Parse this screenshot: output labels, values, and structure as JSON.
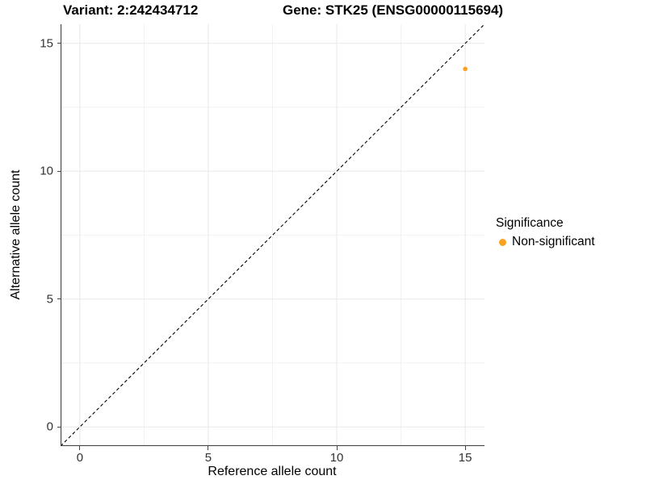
{
  "titles": {
    "variant": "Variant: 2:242434712",
    "gene": "Gene: STK25 (ENSG00000115694)"
  },
  "axes": {
    "x": {
      "label": "Reference allele count",
      "tick_labels": [
        "0",
        "5",
        "10",
        "15"
      ]
    },
    "y": {
      "label": "Alternative allele count",
      "tick_labels": [
        "0",
        "5",
        "10",
        "15"
      ]
    }
  },
  "legend": {
    "title": "Significance",
    "items": [
      {
        "label": "Non-significant",
        "color": "#FAA222"
      }
    ]
  },
  "colors": {
    "point_non_significant": "#FAA222",
    "grid_major": "#E8E8E8",
    "grid_minor": "#F2F2F2",
    "axis_line": "#444444",
    "reference_line": "#000000",
    "tick_text": "#333333"
  },
  "chart_data": {
    "type": "scatter",
    "title": "Variant: 2:242434712   Gene: STK25 (ENSG00000115694)",
    "xlabel": "Reference allele count",
    "ylabel": "Alternative allele count",
    "xlim": [
      -0.75,
      15.75
    ],
    "ylim": [
      -0.75,
      15.75
    ],
    "x_ticks": [
      0,
      5,
      10,
      15
    ],
    "y_ticks": [
      0,
      5,
      10,
      15
    ],
    "grid": "major+minor",
    "legend_position": "right",
    "legend_title": "Significance",
    "reference_line": {
      "type": "y=x",
      "style": "dashed",
      "color": "#000000"
    },
    "series": [
      {
        "name": "Non-significant",
        "color": "#FAA222",
        "points": [
          [
            15,
            14
          ]
        ]
      }
    ]
  }
}
